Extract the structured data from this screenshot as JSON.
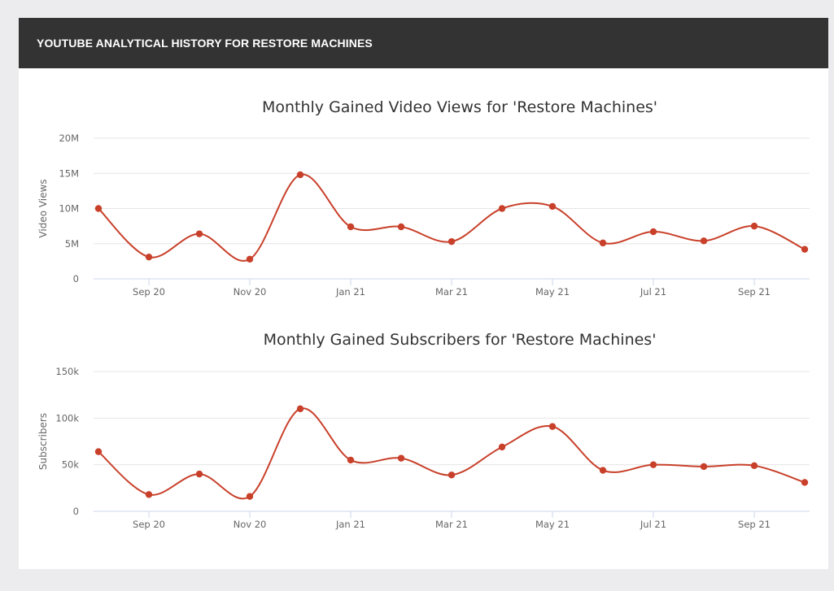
{
  "panel": {
    "header": "YOUTUBE ANALYTICAL HISTORY FOR RESTORE MACHINES"
  },
  "colors": {
    "series": "#c8402a",
    "grid": "#e6e6e6",
    "axis": "#ccd6eb",
    "header_bg": "#333333"
  },
  "chart_data": [
    {
      "type": "line",
      "title": "Monthly Gained Video Views for 'Restore Machines'",
      "ylabel": "Video Views",
      "xlabel": "",
      "ylim": [
        0,
        20000000
      ],
      "yticks": [
        {
          "value": 0,
          "label": "0"
        },
        {
          "value": 5000000,
          "label": "5M"
        },
        {
          "value": 10000000,
          "label": "10M"
        },
        {
          "value": 15000000,
          "label": "15M"
        },
        {
          "value": 20000000,
          "label": "20M"
        }
      ],
      "xticks": [
        "Sep 20",
        "Nov 20",
        "Jan 21",
        "Mar 21",
        "May 21",
        "Jul 21",
        "Sep 21"
      ],
      "x": [
        "2020-08",
        "2020-09",
        "2020-10",
        "2020-11",
        "2020-12",
        "2021-01",
        "2021-02",
        "2021-03",
        "2021-04",
        "2021-05",
        "2021-06",
        "2021-07",
        "2021-08",
        "2021-09",
        "2021-10"
      ],
      "values": [
        10000000,
        3100000,
        6400000,
        2800000,
        14800000,
        7400000,
        7400000,
        5300000,
        10000000,
        10300000,
        5100000,
        6700000,
        5400000,
        7500000,
        4200000
      ],
      "grid": true,
      "legend": "none"
    },
    {
      "type": "line",
      "title": "Monthly Gained Subscribers for 'Restore Machines'",
      "ylabel": "Subscribers",
      "xlabel": "",
      "ylim": [
        0,
        150000
      ],
      "yticks": [
        {
          "value": 0,
          "label": "0"
        },
        {
          "value": 50000,
          "label": "50k"
        },
        {
          "value": 100000,
          "label": "100k"
        },
        {
          "value": 150000,
          "label": "150k"
        }
      ],
      "xticks": [
        "Sep 20",
        "Nov 20",
        "Jan 21",
        "Mar 21",
        "May 21",
        "Jul 21",
        "Sep 21"
      ],
      "x": [
        "2020-08",
        "2020-09",
        "2020-10",
        "2020-11",
        "2020-12",
        "2021-01",
        "2021-02",
        "2021-03",
        "2021-04",
        "2021-05",
        "2021-06",
        "2021-07",
        "2021-08",
        "2021-09",
        "2021-10"
      ],
      "values": [
        64000,
        18000,
        40000,
        16000,
        110000,
        55000,
        57000,
        39000,
        69000,
        91000,
        44000,
        50000,
        48000,
        49000,
        31000
      ],
      "grid": true,
      "legend": "none"
    }
  ]
}
